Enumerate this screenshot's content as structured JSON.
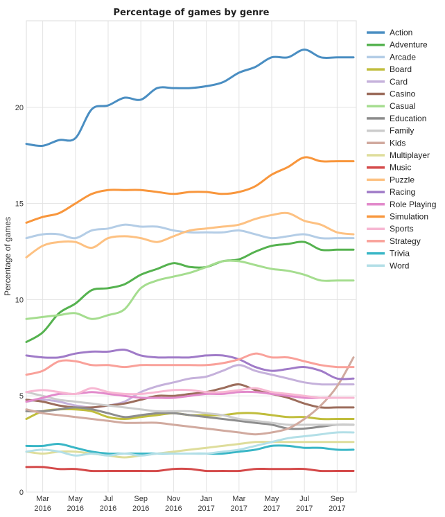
{
  "chart_data": {
    "type": "line",
    "title": "Percentage of games by genre",
    "xlabel": "",
    "ylabel": "Percentage of games",
    "ylim": [
      0,
      24.5
    ],
    "yticks": [
      0,
      5,
      10,
      15,
      20
    ],
    "grid": true,
    "legend_position": "right",
    "x": [
      "2016-02",
      "2016-03",
      "2016-04",
      "2016-05",
      "2016-06",
      "2016-07",
      "2016-08",
      "2016-09",
      "2016-10",
      "2016-11",
      "2016-12",
      "2017-01",
      "2017-02",
      "2017-03",
      "2017-04",
      "2017-05",
      "2017-06",
      "2017-07",
      "2017-08",
      "2017-09",
      "2017-10"
    ],
    "xtick_labels": [
      {
        "month": "Mar",
        "year": "2016",
        "at": "2016-03"
      },
      {
        "month": "May",
        "year": "2016",
        "at": "2016-05"
      },
      {
        "month": "Jul",
        "year": "2016",
        "at": "2016-07"
      },
      {
        "month": "Sep",
        "year": "2016",
        "at": "2016-09"
      },
      {
        "month": "Nov",
        "year": "2016",
        "at": "2016-11"
      },
      {
        "month": "Jan",
        "year": "2017",
        "at": "2017-01"
      },
      {
        "month": "Mar",
        "year": "2017",
        "at": "2017-03"
      },
      {
        "month": "May",
        "year": "2017",
        "at": "2017-05"
      },
      {
        "month": "Jul",
        "year": "2017",
        "at": "2017-07"
      },
      {
        "month": "Sep",
        "year": "2017",
        "at": "2017-09"
      }
    ],
    "series": [
      {
        "name": "Action",
        "color": "#4a8ec2",
        "values": [
          18.1,
          18.0,
          18.3,
          18.4,
          19.9,
          20.1,
          20.5,
          20.4,
          21.0,
          21.0,
          21.0,
          21.1,
          21.3,
          21.8,
          22.1,
          22.6,
          22.6,
          23.0,
          22.6,
          22.6,
          22.6
        ]
      },
      {
        "name": "Adventure",
        "color": "#55b24f",
        "values": [
          7.8,
          8.3,
          9.3,
          9.8,
          10.5,
          10.6,
          10.8,
          11.3,
          11.6,
          11.9,
          11.7,
          11.7,
          12.0,
          12.1,
          12.5,
          12.8,
          12.9,
          13.0,
          12.6,
          12.6,
          12.6
        ]
      },
      {
        "name": "Arcade",
        "color": "#b4cde6",
        "values": [
          13.2,
          13.4,
          13.4,
          13.2,
          13.6,
          13.7,
          13.9,
          13.8,
          13.8,
          13.6,
          13.5,
          13.5,
          13.5,
          13.6,
          13.4,
          13.2,
          13.3,
          13.4,
          13.2,
          13.2,
          13.2
        ]
      },
      {
        "name": "Board",
        "color": "#c0bd3c",
        "values": [
          3.8,
          4.2,
          4.3,
          4.3,
          4.2,
          3.9,
          3.8,
          3.9,
          4.0,
          4.1,
          4.0,
          4.0,
          4.0,
          4.1,
          4.1,
          4.0,
          3.9,
          3.9,
          3.8,
          3.8,
          3.8
        ]
      },
      {
        "name": "Card",
        "color": "#c5b1db",
        "values": [
          4.7,
          4.8,
          4.7,
          4.5,
          4.4,
          4.5,
          4.7,
          5.2,
          5.5,
          5.7,
          5.9,
          6.0,
          6.3,
          6.6,
          6.3,
          6.1,
          5.9,
          5.7,
          5.6,
          5.6,
          5.6
        ]
      },
      {
        "name": "Casino",
        "color": "#9c6d5c",
        "values": [
          4.8,
          4.7,
          4.5,
          4.4,
          4.4,
          4.5,
          4.6,
          4.8,
          5.0,
          5.0,
          5.1,
          5.2,
          5.4,
          5.6,
          5.3,
          5.1,
          4.9,
          4.6,
          4.4,
          4.4,
          4.4
        ]
      },
      {
        "name": "Casual",
        "color": "#a5dd8f",
        "values": [
          9.0,
          9.1,
          9.2,
          9.3,
          9.0,
          9.2,
          9.5,
          10.6,
          11.0,
          11.2,
          11.4,
          11.7,
          12.0,
          12.0,
          11.8,
          11.6,
          11.5,
          11.3,
          11.0,
          11.0,
          11.0
        ]
      },
      {
        "name": "Education",
        "color": "#8d8d8d",
        "values": [
          4.2,
          4.2,
          4.3,
          4.4,
          4.3,
          4.1,
          3.9,
          4.0,
          4.1,
          4.1,
          4.0,
          3.9,
          3.8,
          3.7,
          3.6,
          3.5,
          3.3,
          3.3,
          3.4,
          3.5,
          3.5
        ]
      },
      {
        "name": "Family",
        "color": "#cccccc",
        "values": [
          5.2,
          5.0,
          4.8,
          4.7,
          4.6,
          4.5,
          4.4,
          4.3,
          4.2,
          4.2,
          4.2,
          4.1,
          4.0,
          3.8,
          3.7,
          3.6,
          3.5,
          3.5,
          3.5,
          3.5,
          3.5
        ]
      },
      {
        "name": "Kids",
        "color": "#d1aa9f",
        "values": [
          4.3,
          4.1,
          4.0,
          3.9,
          3.8,
          3.7,
          3.6,
          3.6,
          3.6,
          3.5,
          3.4,
          3.3,
          3.2,
          3.1,
          3.0,
          3.1,
          3.3,
          3.8,
          4.5,
          5.5,
          7.0
        ]
      },
      {
        "name": "Multiplayer",
        "color": "#dedd9b",
        "values": [
          2.1,
          2.0,
          2.1,
          2.1,
          2.0,
          1.9,
          1.8,
          1.9,
          2.0,
          2.1,
          2.2,
          2.3,
          2.4,
          2.5,
          2.6,
          2.6,
          2.6,
          2.6,
          2.6,
          2.6,
          2.6
        ]
      },
      {
        "name": "Music",
        "color": "#d44a4a",
        "values": [
          1.3,
          1.3,
          1.2,
          1.2,
          1.1,
          1.1,
          1.1,
          1.1,
          1.1,
          1.2,
          1.2,
          1.1,
          1.1,
          1.1,
          1.2,
          1.2,
          1.2,
          1.2,
          1.1,
          1.1,
          1.1
        ]
      },
      {
        "name": "Puzzle",
        "color": "#fdc182",
        "values": [
          12.2,
          12.8,
          13.0,
          13.0,
          12.7,
          13.2,
          13.3,
          13.2,
          13.0,
          13.3,
          13.6,
          13.7,
          13.8,
          13.9,
          14.2,
          14.4,
          14.5,
          14.1,
          13.9,
          13.5,
          13.4
        ]
      },
      {
        "name": "Racing",
        "color": "#a07bc8",
        "values": [
          7.1,
          7.0,
          7.0,
          7.2,
          7.3,
          7.3,
          7.4,
          7.1,
          7.0,
          7.0,
          7.0,
          7.1,
          7.1,
          6.9,
          6.5,
          6.3,
          6.4,
          6.5,
          6.3,
          5.9,
          5.9
        ]
      },
      {
        "name": "Role Playing",
        "color": "#e28acb",
        "values": [
          4.7,
          4.9,
          5.1,
          5.1,
          5.2,
          5.1,
          5.0,
          4.9,
          4.9,
          4.9,
          5.0,
          5.1,
          5.1,
          5.2,
          5.2,
          5.1,
          5.0,
          4.9,
          4.9,
          4.9,
          4.9
        ]
      },
      {
        "name": "Simulation",
        "color": "#f8963c",
        "values": [
          14.0,
          14.3,
          14.5,
          15.0,
          15.5,
          15.7,
          15.7,
          15.7,
          15.6,
          15.5,
          15.6,
          15.6,
          15.5,
          15.6,
          15.9,
          16.5,
          16.9,
          17.4,
          17.2,
          17.2,
          17.2
        ]
      },
      {
        "name": "Sports",
        "color": "#f7b7d2",
        "values": [
          5.2,
          5.3,
          5.2,
          5.1,
          5.4,
          5.2,
          5.1,
          5.1,
          5.2,
          5.3,
          5.3,
          5.2,
          5.2,
          5.3,
          5.4,
          5.2,
          5.1,
          5.0,
          4.9,
          4.9,
          4.9
        ]
      },
      {
        "name": "Strategy",
        "color": "#f9a19a",
        "values": [
          6.1,
          6.3,
          6.8,
          6.8,
          6.6,
          6.6,
          6.5,
          6.6,
          6.6,
          6.6,
          6.6,
          6.6,
          6.7,
          6.9,
          7.2,
          7.0,
          7.0,
          6.8,
          6.6,
          6.5,
          6.5
        ]
      },
      {
        "name": "Trivia",
        "color": "#39b6c6",
        "values": [
          2.4,
          2.4,
          2.5,
          2.3,
          2.1,
          2.0,
          2.0,
          2.0,
          2.0,
          2.0,
          2.0,
          2.0,
          2.0,
          2.1,
          2.2,
          2.4,
          2.4,
          2.3,
          2.3,
          2.2,
          2.2
        ]
      },
      {
        "name": "Word",
        "color": "#b3dfe7",
        "values": [
          2.1,
          2.2,
          2.1,
          1.9,
          2.0,
          1.9,
          2.0,
          1.9,
          2.0,
          2.0,
          2.0,
          2.0,
          2.1,
          2.2,
          2.4,
          2.6,
          2.8,
          2.9,
          3.0,
          3.1,
          3.1
        ]
      }
    ]
  }
}
